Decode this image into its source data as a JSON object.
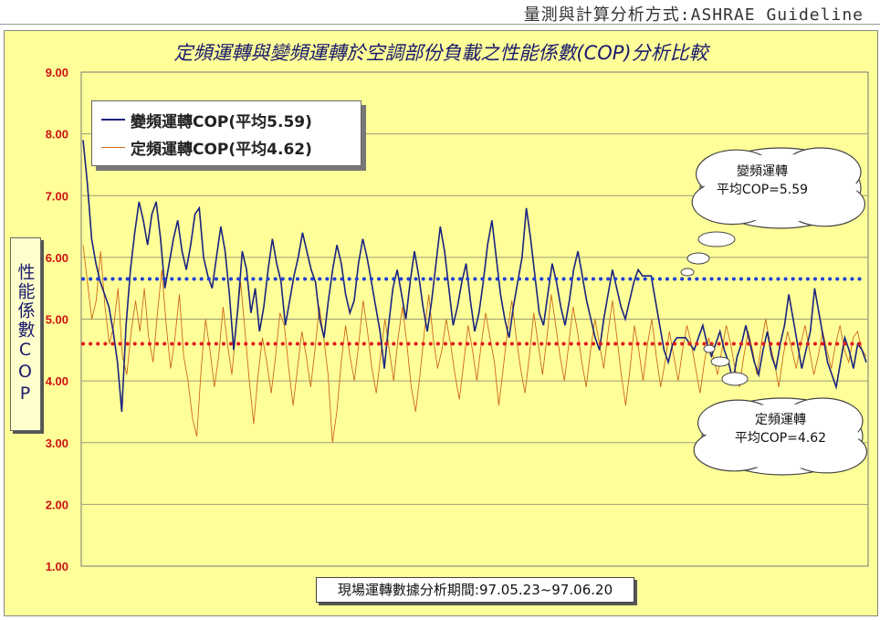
{
  "header": {
    "title": "量測與計算分析方式:ASHRAE Guideline"
  },
  "colors": {
    "background": "#ffff99",
    "variable_series": "#1a237e",
    "fixed_series": "#cc6a1a",
    "variable_avg": "#1f3fd6",
    "fixed_avg": "#e01b1b"
  },
  "chart_data": {
    "type": "line",
    "title": "定頻運轉與變頻運轉於空調部份負載之性能係數(COP)分析比較",
    "ylabel": "性能係數COP",
    "xlabel": "",
    "ylim": [
      1.0,
      9.0
    ],
    "yticks": [
      "1.00",
      "2.00",
      "3.00",
      "4.00",
      "5.00",
      "6.00",
      "7.00",
      "8.00",
      "9.00"
    ],
    "grid": true,
    "legend_position": "top-left",
    "period_label": "現場運轉數據分析期間:97.05.23~97.06.20",
    "series": [
      {
        "name": "變頻運轉COP(平均5.59)",
        "average": 5.59,
        "values": [
          7.9,
          7.2,
          6.3,
          5.9,
          5.6,
          5.4,
          5.2,
          4.8,
          4.3,
          3.5,
          4.9,
          5.8,
          6.4,
          6.9,
          6.6,
          6.2,
          6.7,
          6.9,
          6.3,
          5.5,
          5.9,
          6.3,
          6.6,
          6.1,
          5.8,
          6.2,
          6.7,
          6.8,
          6.0,
          5.7,
          5.5,
          6.0,
          6.5,
          6.1,
          5.4,
          4.5,
          5.2,
          6.1,
          5.8,
          5.1,
          5.5,
          4.8,
          5.2,
          5.8,
          6.3,
          5.9,
          5.6,
          4.9,
          5.3,
          5.7,
          6.0,
          6.4,
          6.1,
          5.8,
          5.6,
          5.0,
          4.7,
          5.3,
          5.8,
          6.2,
          5.9,
          5.4,
          5.1,
          5.3,
          5.9,
          6.3,
          6.0,
          5.6,
          5.2,
          4.8,
          4.2,
          4.9,
          5.5,
          5.8,
          5.4,
          5.0,
          5.6,
          6.1,
          5.7,
          5.2,
          4.8,
          5.3,
          5.9,
          6.5,
          6.1,
          5.5,
          4.9,
          5.2,
          5.6,
          5.9,
          5.3,
          4.8,
          5.1,
          5.6,
          6.2,
          6.6,
          6.0,
          5.4,
          5.0,
          4.7,
          5.2,
          5.6,
          6.0,
          6.8,
          6.3,
          5.7,
          5.1,
          4.9,
          5.4,
          5.9,
          5.6,
          5.2,
          4.9,
          5.3,
          5.8,
          6.1,
          5.7,
          5.3,
          5.0,
          4.7,
          4.5,
          5.0,
          5.4,
          5.8,
          5.5,
          5.2,
          5.0,
          5.3,
          5.6,
          5.8,
          5.7,
          5.7,
          5.7,
          5.3,
          4.9,
          4.5,
          4.3,
          4.6,
          4.7,
          4.7,
          4.7,
          4.6,
          4.5,
          4.7,
          4.9,
          4.6,
          4.4,
          4.6,
          4.8,
          4.5,
          4.3,
          4.0,
          4.4,
          4.6,
          4.9,
          4.6,
          4.3,
          4.1,
          4.5,
          4.8,
          4.4,
          4.2,
          4.6,
          4.9,
          5.4,
          5.0,
          4.6,
          4.2,
          4.5,
          4.8,
          5.5,
          5.1,
          4.7,
          4.3,
          4.1,
          3.9,
          4.3,
          4.7,
          4.5,
          4.2,
          4.6,
          4.5,
          4.3
        ]
      },
      {
        "name": "定頻運轉COP(平均4.62)",
        "average": 4.62,
        "values": [
          6.2,
          5.6,
          5.0,
          5.3,
          6.1,
          5.2,
          4.6,
          4.9,
          5.5,
          4.4,
          4.1,
          4.8,
          5.3,
          4.8,
          5.5,
          4.7,
          4.3,
          5.1,
          5.8,
          4.9,
          4.2,
          4.7,
          5.4,
          4.4,
          4.0,
          3.4,
          3.1,
          4.2,
          5.0,
          4.5,
          3.9,
          4.4,
          5.2,
          4.6,
          4.1,
          4.9,
          5.6,
          4.8,
          4.0,
          3.3,
          4.1,
          4.7,
          4.3,
          3.8,
          4.4,
          5.1,
          4.9,
          4.2,
          3.6,
          4.2,
          4.8,
          4.4,
          3.9,
          4.5,
          5.2,
          4.7,
          4.1,
          3.0,
          3.5,
          4.3,
          4.9,
          4.4,
          4.0,
          4.6,
          5.3,
          4.8,
          4.2,
          3.8,
          4.4,
          5.0,
          4.5,
          4.0,
          4.7,
          5.2,
          4.6,
          3.9,
          3.5,
          4.1,
          4.8,
          5.4,
          4.7,
          4.2,
          4.5,
          5.0,
          4.6,
          4.1,
          3.7,
          4.3,
          4.9,
          4.5,
          4.0,
          4.6,
          5.1,
          4.7,
          4.3,
          3.6,
          4.2,
          4.8,
          5.3,
          4.7,
          4.2,
          3.8,
          4.4,
          5.1,
          4.6,
          4.1,
          4.7,
          5.4,
          4.9,
          4.4,
          4.0,
          4.6,
          5.2,
          4.8,
          4.3,
          3.9,
          4.5,
          5.0,
          4.6,
          4.2,
          4.8,
          5.3,
          4.7,
          4.1,
          3.6,
          4.2,
          4.9,
          4.5,
          4.0,
          4.6,
          5.0,
          4.4,
          3.9,
          4.3,
          4.8,
          4.4,
          4.0,
          4.5,
          4.9,
          4.6,
          4.2,
          3.8,
          4.3,
          4.7,
          4.4,
          4.1,
          4.5,
          4.9,
          4.6,
          4.2,
          3.9,
          4.4,
          4.8,
          4.5,
          4.1,
          4.6,
          5.0,
          4.6,
          4.3,
          3.9,
          4.4,
          4.8,
          4.5,
          4.2,
          4.6,
          4.9,
          4.5,
          4.1,
          4.4,
          4.8,
          4.5,
          4.2,
          4.6,
          4.9,
          4.5,
          4.3,
          4.7,
          4.8,
          4.5,
          4.4
        ]
      }
    ],
    "annotations": [
      {
        "line1": "變頻運轉",
        "line2": "平均COP=5.59"
      },
      {
        "line1": "定頻運轉",
        "line2": "平均COP=4.62"
      }
    ]
  }
}
